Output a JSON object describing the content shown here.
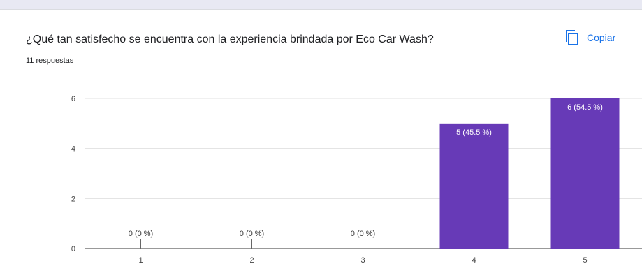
{
  "header": {
    "question": "¿Qué tan satisfecho se encuentra con la experiencia brindada por Eco Car Wash?",
    "responses": "11 respuestas",
    "copy_label": "Copiar",
    "copy_icon": "copy-icon"
  },
  "colors": {
    "bar": "#673ab7",
    "accent": "#1a73e8",
    "grid": "#e0e0e0"
  },
  "chart_data": {
    "type": "bar",
    "categories": [
      "1",
      "2",
      "3",
      "4",
      "5"
    ],
    "values": [
      0,
      0,
      0,
      5,
      6
    ],
    "labels": [
      "0 (0 %)",
      "0 (0 %)",
      "0 (0 %)",
      "5 (45.5 %)",
      "6 (54.5 %)"
    ],
    "ylim": [
      0,
      6
    ],
    "yticks": [
      0,
      2,
      4,
      6
    ],
    "grid": true,
    "legend": "none"
  }
}
